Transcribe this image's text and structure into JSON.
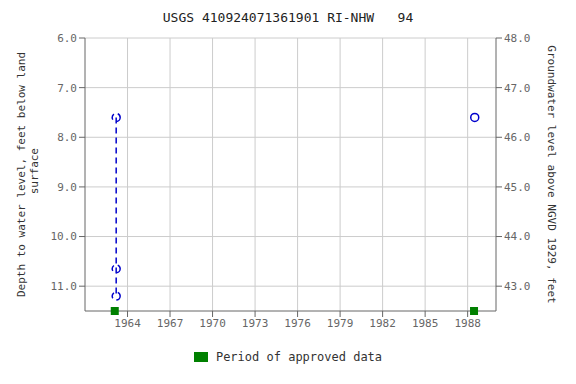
{
  "chart_data": {
    "type": "line",
    "title": "USGS 410924071361901 RI-NHW   94",
    "y_label": "Depth to water level, feet below land\n surface",
    "y2_label": "Groundwater level above NGVD 1929, feet",
    "series": [
      {
        "x": [
          1963.2,
          1963.2,
          1963.2
        ],
        "values": [
          7.6,
          10.65,
          11.2
        ],
        "color": "#0000CC",
        "line_style": "dashed",
        "marker": "circle"
      },
      {
        "x": [
          1988.5
        ],
        "values": [
          7.6
        ],
        "color": "#0000CC",
        "line_style": "none",
        "marker": "circle"
      }
    ],
    "approved_periods": {
      "name": "Period of approved data",
      "x": [
        1963.1,
        1988.45
      ],
      "color": "#008000",
      "marker": "square"
    },
    "xlim": [
      1961,
      1990
    ],
    "xticks": [
      1964,
      1967,
      1970,
      1973,
      1976,
      1979,
      1982,
      1985,
      1988
    ],
    "ylim": [
      11.5,
      6.0
    ],
    "yticks": [
      {
        "value": 6.0,
        "label": "6.0"
      },
      {
        "value": 7.0,
        "label": "7.0"
      },
      {
        "value": 8.0,
        "label": "8.0"
      },
      {
        "value": 9.0,
        "label": "9.0"
      },
      {
        "value": 10.0,
        "label": "10.0"
      },
      {
        "value": 11.0,
        "label": "11.0"
      }
    ],
    "y2lim": [
      42.5,
      48.0
    ],
    "y2ticks": [
      {
        "value": 43.0,
        "label": "43.0"
      },
      {
        "value": 44.0,
        "label": "44.0"
      },
      {
        "value": 45.0,
        "label": "45.0"
      },
      {
        "value": 46.0,
        "label": "46.0"
      },
      {
        "value": 47.0,
        "label": "47.0"
      },
      {
        "value": 48.0,
        "label": "48.0"
      }
    ],
    "grid": true
  }
}
